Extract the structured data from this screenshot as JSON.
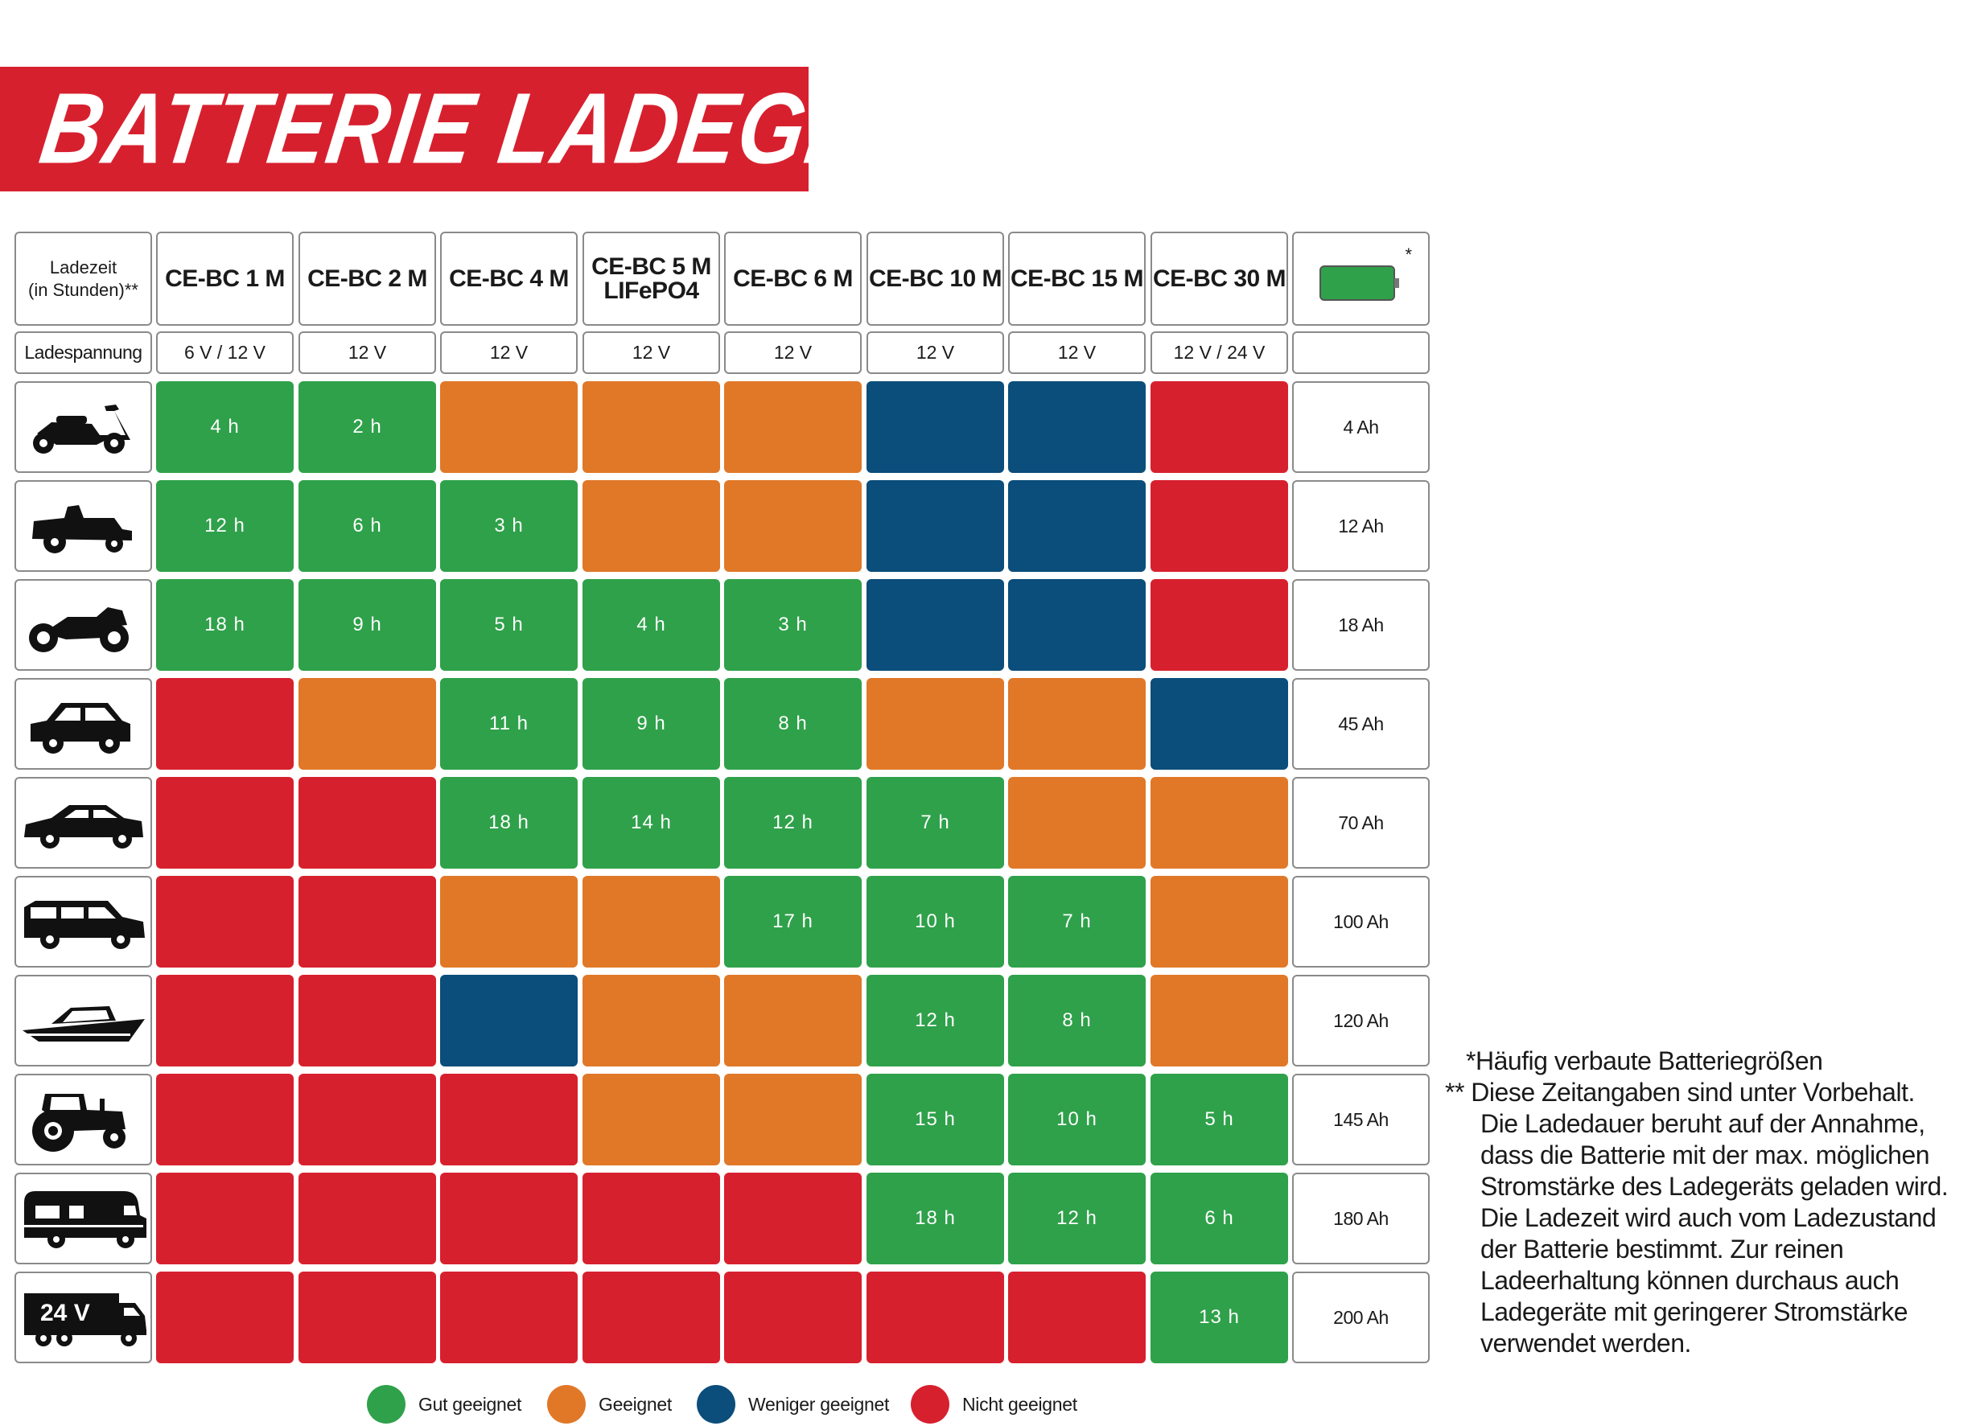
{
  "title": "BATTERIE LADEGERÄTE",
  "colors": {
    "green": "#2fa14a",
    "orange": "#e07828",
    "blue": "#0b4d7b",
    "red": "#d7202e",
    "banner": "#d7202e"
  },
  "header": {
    "corner_label": [
      "Ladezeit",
      "(in Stunden)**"
    ],
    "voltage_label": "Ladespannung",
    "battery_icon_marker": "*"
  },
  "chart_data": {
    "type": "table",
    "columns": [
      {
        "model": [
          "CE-BC 1 M"
        ],
        "voltage": "6 V / 12 V"
      },
      {
        "model": [
          "CE-BC 2 M"
        ],
        "voltage": "12 V"
      },
      {
        "model": [
          "CE-BC 4 M"
        ],
        "voltage": "12 V"
      },
      {
        "model": [
          "CE-BC 5 M",
          "LIFePO4"
        ],
        "voltage": "12 V"
      },
      {
        "model": [
          "CE-BC 6 M"
        ],
        "voltage": "12 V"
      },
      {
        "model": [
          "CE-BC 10 M"
        ],
        "voltage": "12 V"
      },
      {
        "model": [
          "CE-BC 15 M"
        ],
        "voltage": "12 V"
      },
      {
        "model": [
          "CE-BC 30 M"
        ],
        "voltage": "12 V / 24 V"
      }
    ],
    "rows": [
      {
        "vehicle": "scooter-icon",
        "capacity": "4 Ah",
        "cells": [
          {
            "r": "g",
            "t": "4 h"
          },
          {
            "r": "g",
            "t": "2 h"
          },
          {
            "r": "o",
            "t": ""
          },
          {
            "r": "o",
            "t": ""
          },
          {
            "r": "o",
            "t": ""
          },
          {
            "r": "b",
            "t": ""
          },
          {
            "r": "b",
            "t": ""
          },
          {
            "r": "r",
            "t": ""
          }
        ]
      },
      {
        "vehicle": "lawn-tractor-icon",
        "capacity": "12 Ah",
        "cells": [
          {
            "r": "g",
            "t": "12 h"
          },
          {
            "r": "g",
            "t": "6 h"
          },
          {
            "r": "g",
            "t": "3 h"
          },
          {
            "r": "o",
            "t": ""
          },
          {
            "r": "o",
            "t": ""
          },
          {
            "r": "b",
            "t": ""
          },
          {
            "r": "b",
            "t": ""
          },
          {
            "r": "r",
            "t": ""
          }
        ]
      },
      {
        "vehicle": "motorcycle-icon",
        "capacity": "18 Ah",
        "cells": [
          {
            "r": "g",
            "t": "18 h"
          },
          {
            "r": "g",
            "t": "9 h"
          },
          {
            "r": "g",
            "t": "5 h"
          },
          {
            "r": "g",
            "t": "4 h"
          },
          {
            "r": "g",
            "t": "3 h"
          },
          {
            "r": "b",
            "t": ""
          },
          {
            "r": "b",
            "t": ""
          },
          {
            "r": "r",
            "t": ""
          }
        ]
      },
      {
        "vehicle": "small-car-icon",
        "capacity": "45 Ah",
        "cells": [
          {
            "r": "r",
            "t": ""
          },
          {
            "r": "o",
            "t": ""
          },
          {
            "r": "g",
            "t": "11 h"
          },
          {
            "r": "g",
            "t": "9 h"
          },
          {
            "r": "g",
            "t": "8 h"
          },
          {
            "r": "o",
            "t": ""
          },
          {
            "r": "o",
            "t": ""
          },
          {
            "r": "b",
            "t": ""
          }
        ]
      },
      {
        "vehicle": "sedan-icon",
        "capacity": "70 Ah",
        "cells": [
          {
            "r": "r",
            "t": ""
          },
          {
            "r": "r",
            "t": ""
          },
          {
            "r": "g",
            "t": "18 h"
          },
          {
            "r": "g",
            "t": "14 h"
          },
          {
            "r": "g",
            "t": "12 h"
          },
          {
            "r": "g",
            "t": "7 h"
          },
          {
            "r": "o",
            "t": ""
          },
          {
            "r": "o",
            "t": ""
          }
        ]
      },
      {
        "vehicle": "station-wagon-icon",
        "capacity": "100 Ah",
        "cells": [
          {
            "r": "r",
            "t": ""
          },
          {
            "r": "r",
            "t": ""
          },
          {
            "r": "o",
            "t": ""
          },
          {
            "r": "o",
            "t": ""
          },
          {
            "r": "g",
            "t": "17 h"
          },
          {
            "r": "g",
            "t": "10 h"
          },
          {
            "r": "g",
            "t": "7 h"
          },
          {
            "r": "o",
            "t": ""
          }
        ]
      },
      {
        "vehicle": "boat-icon",
        "capacity": "120 Ah",
        "cells": [
          {
            "r": "r",
            "t": ""
          },
          {
            "r": "r",
            "t": ""
          },
          {
            "r": "b",
            "t": ""
          },
          {
            "r": "o",
            "t": ""
          },
          {
            "r": "o",
            "t": ""
          },
          {
            "r": "g",
            "t": "12 h"
          },
          {
            "r": "g",
            "t": "8 h"
          },
          {
            "r": "o",
            "t": ""
          }
        ]
      },
      {
        "vehicle": "tractor-icon",
        "capacity": "145 Ah",
        "cells": [
          {
            "r": "r",
            "t": ""
          },
          {
            "r": "r",
            "t": ""
          },
          {
            "r": "r",
            "t": ""
          },
          {
            "r": "o",
            "t": ""
          },
          {
            "r": "o",
            "t": ""
          },
          {
            "r": "g",
            "t": "15 h"
          },
          {
            "r": "g",
            "t": "10 h"
          },
          {
            "r": "g",
            "t": "5 h"
          }
        ]
      },
      {
        "vehicle": "motorhome-icon",
        "capacity": "180 Ah",
        "cells": [
          {
            "r": "r",
            "t": ""
          },
          {
            "r": "r",
            "t": ""
          },
          {
            "r": "r",
            "t": ""
          },
          {
            "r": "r",
            "t": ""
          },
          {
            "r": "r",
            "t": ""
          },
          {
            "r": "g",
            "t": "18 h"
          },
          {
            "r": "g",
            "t": "12 h"
          },
          {
            "r": "g",
            "t": "6 h"
          }
        ]
      },
      {
        "vehicle": "truck-24v-icon",
        "vehicle_label": "24 V",
        "capacity": "200 Ah",
        "cells": [
          {
            "r": "r",
            "t": ""
          },
          {
            "r": "r",
            "t": ""
          },
          {
            "r": "r",
            "t": ""
          },
          {
            "r": "r",
            "t": ""
          },
          {
            "r": "r",
            "t": ""
          },
          {
            "r": "r",
            "t": ""
          },
          {
            "r": "r",
            "t": ""
          },
          {
            "r": "g",
            "t": "13 h"
          }
        ]
      }
    ]
  },
  "legend": [
    {
      "key": "g",
      "label": "Gut geeignet"
    },
    {
      "key": "o",
      "label": "Geeignet"
    },
    {
      "key": "b",
      "label": "Weniger geeignet"
    },
    {
      "key": "r",
      "label": "Nicht geeignet"
    }
  ],
  "notes": [
    "*Häufig verbaute Batteriegrößen",
    "** Diese Zeitangaben sind unter Vorbehalt.",
    "Die Ladedauer beruht auf der Annahme,",
    "dass die Batterie mit der max. möglichen",
    "Stromstärke des Ladegeräts geladen wird.",
    "Die Ladezeit wird auch vom Ladezustand",
    "der Batterie bestimmt. Zur reinen",
    "Ladeerhaltung können durchaus auch",
    "Ladegeräte mit geringerer Stromstärke",
    "verwendet werden."
  ]
}
